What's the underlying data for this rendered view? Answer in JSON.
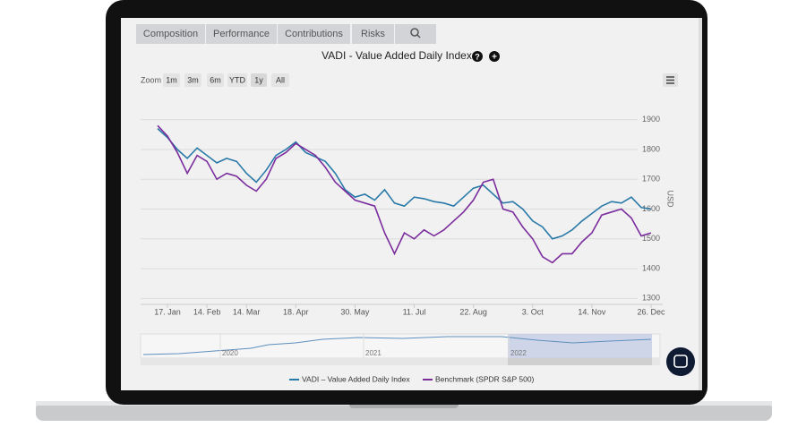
{
  "tabs": [
    "Composition",
    "Performance",
    "Contributions",
    "Risks"
  ],
  "zoom": {
    "label": "Zoom",
    "buttons": [
      "1m",
      "3m",
      "6m",
      "YTD",
      "1y",
      "All"
    ]
  },
  "navigator": {
    "labels": [
      "2020",
      "2021",
      "2022"
    ]
  },
  "chart_data": {
    "type": "line",
    "title": "VADI - Value Added Daily Index",
    "y_label": "USD",
    "categories": [
      null,
      "17. Jan",
      null,
      null,
      null,
      "14. Feb",
      null,
      null,
      null,
      "14. Mar",
      null,
      null,
      null,
      null,
      "18. Apr",
      null,
      null,
      null,
      null,
      null,
      "30. May",
      null,
      null,
      null,
      null,
      null,
      "11. Jul",
      null,
      null,
      null,
      null,
      null,
      "22. Aug",
      null,
      null,
      null,
      null,
      null,
      "3. Oct",
      null,
      null,
      null,
      null,
      null,
      "14. Nov",
      null,
      null,
      null,
      null,
      null,
      "26. Dec"
    ],
    "series": [
      {
        "name": "VADI – Value Added Daily Index",
        "color": "#2a7aa8",
        "values": [
          1870,
          1840,
          1800,
          1770,
          1805,
          1780,
          1755,
          1770,
          1760,
          1720,
          1690,
          1730,
          1780,
          1800,
          1825,
          1790,
          1775,
          1760,
          1720,
          1665,
          1640,
          1650,
          1630,
          1665,
          1620,
          1610,
          1640,
          1635,
          1625,
          1620,
          1610,
          1640,
          1670,
          1680,
          1650,
          1620,
          1625,
          1600,
          1560,
          1540,
          1500,
          1510,
          1530,
          1560,
          1585,
          1610,
          1625,
          1620,
          1640,
          1605,
          1600
        ]
      },
      {
        "name": "Benchmark (SPDR S&P 500)",
        "color": "#7b2d9c",
        "values": [
          1880,
          1845,
          1790,
          1720,
          1780,
          1760,
          1700,
          1720,
          1710,
          1680,
          1660,
          1700,
          1770,
          1790,
          1820,
          1800,
          1780,
          1740,
          1690,
          1660,
          1630,
          1620,
          1610,
          1520,
          1450,
          1520,
          1500,
          1530,
          1510,
          1530,
          1560,
          1590,
          1630,
          1690,
          1700,
          1600,
          1590,
          1540,
          1500,
          1440,
          1420,
          1450,
          1450,
          1490,
          1520,
          1580,
          1590,
          1600,
          1570,
          1510,
          1520
        ]
      }
    ],
    "ylim": [
      1280,
      1920
    ],
    "yticks": [
      1300,
      1400,
      1500,
      1600,
      1700,
      1800,
      1900
    ],
    "grid": true
  }
}
